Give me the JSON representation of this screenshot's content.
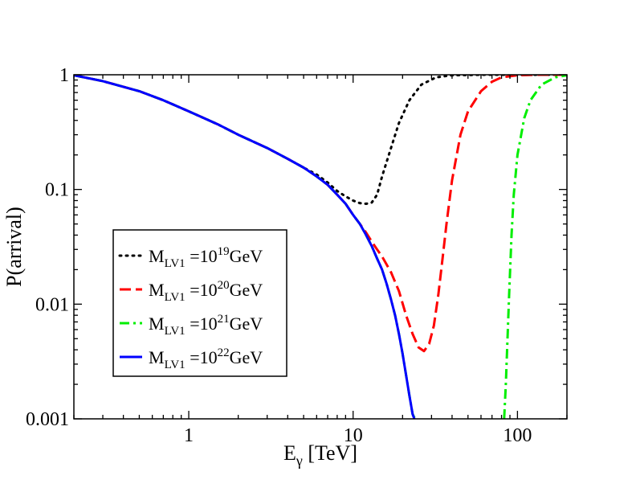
{
  "chart_data": {
    "type": "line",
    "title": "",
    "xlabel": "E",
    "xlabel_sub": "γ",
    "xlabel_unit": " [TeV]",
    "ylabel": "P(arrival)",
    "xscale": "log",
    "yscale": "log",
    "xlim": [
      0.2,
      200
    ],
    "ylim": [
      0.001,
      1
    ],
    "x_ticks": [
      {
        "value": 1,
        "label": "1"
      },
      {
        "value": 10,
        "label": "10"
      },
      {
        "value": 100,
        "label": "100"
      }
    ],
    "y_ticks": [
      {
        "value": 0.001,
        "label": "0.001"
      },
      {
        "value": 0.01,
        "label": "0.01"
      },
      {
        "value": 0.1,
        "label": "0.1"
      },
      {
        "value": 1,
        "label": "1"
      }
    ],
    "legend_position": "center-left",
    "series": [
      {
        "name": "M_LV1 =10^19 GeV",
        "label_main": "M",
        "label_sub": "LV1",
        "label_mid": " =10",
        "label_sup": "19",
        "label_unit": "GeV",
        "color": "#000000",
        "style": "dotted",
        "x": [
          0.2,
          0.3,
          0.5,
          0.7,
          1,
          1.5,
          2,
          3,
          4,
          5,
          6,
          7,
          8,
          9,
          10,
          11,
          12,
          13,
          14,
          15,
          17,
          19,
          22,
          26,
          32,
          40,
          60,
          100,
          200
        ],
        "y": [
          0.99,
          0.88,
          0.72,
          0.6,
          0.48,
          0.37,
          0.3,
          0.23,
          0.185,
          0.155,
          0.135,
          0.115,
          0.097,
          0.087,
          0.08,
          0.076,
          0.075,
          0.077,
          0.09,
          0.13,
          0.23,
          0.38,
          0.6,
          0.82,
          0.95,
          0.99,
          1.0,
          1.0,
          1.0
        ]
      },
      {
        "name": "M_LV1 =10^20 GeV",
        "label_main": "M",
        "label_sub": "LV1",
        "label_mid": " =10",
        "label_sup": "20",
        "label_unit": "GeV",
        "color": "#ff0000",
        "style": "dashed",
        "x": [
          0.2,
          0.3,
          0.5,
          0.7,
          1,
          1.5,
          2,
          3,
          4,
          5,
          6,
          7,
          8,
          9,
          10,
          11,
          12,
          13,
          14,
          15,
          17,
          19,
          21,
          23,
          25,
          27,
          29,
          31,
          33,
          35,
          37,
          40,
          45,
          50,
          60,
          70,
          80,
          100,
          130,
          200
        ],
        "y": [
          0.99,
          0.88,
          0.72,
          0.6,
          0.48,
          0.37,
          0.3,
          0.23,
          0.185,
          0.155,
          0.13,
          0.11,
          0.09,
          0.075,
          0.06,
          0.05,
          0.042,
          0.035,
          0.03,
          0.026,
          0.019,
          0.013,
          0.008,
          0.0055,
          0.0042,
          0.0039,
          0.0045,
          0.0065,
          0.012,
          0.025,
          0.05,
          0.12,
          0.3,
          0.48,
          0.72,
          0.87,
          0.95,
          0.99,
          1.0,
          1.0
        ]
      },
      {
        "name": "M_LV1 =10^21 GeV",
        "label_main": "M",
        "label_sub": "LV1",
        "label_mid": " =10",
        "label_sup": "21",
        "label_unit": "GeV",
        "color": "#00ee00",
        "style": "dashdot",
        "x": [
          0.2,
          0.3,
          0.5,
          0.7,
          1,
          1.5,
          2,
          3,
          4,
          5,
          6,
          7,
          8,
          9,
          10,
          11,
          12,
          13,
          14,
          15,
          16,
          17,
          18,
          19,
          20,
          21,
          22,
          23,
          23.8
        ],
        "x2": [
          83,
          85,
          87,
          89,
          92,
          95,
          100,
          110,
          120,
          140,
          170,
          200
        ],
        "y": [
          0.99,
          0.88,
          0.72,
          0.6,
          0.48,
          0.37,
          0.3,
          0.23,
          0.185,
          0.155,
          0.13,
          0.11,
          0.09,
          0.075,
          0.06,
          0.05,
          0.04,
          0.032,
          0.025,
          0.02,
          0.015,
          0.011,
          0.008,
          0.0055,
          0.0037,
          0.0024,
          0.0016,
          0.0011,
          0.001
        ],
        "y2": [
          0.001,
          0.002,
          0.005,
          0.012,
          0.04,
          0.09,
          0.2,
          0.42,
          0.6,
          0.82,
          0.95,
          0.99
        ]
      },
      {
        "name": "M_LV1 =10^22 GeV",
        "label_main": "M",
        "label_sub": "LV1",
        "label_mid": " =10",
        "label_sup": "22",
        "label_unit": "GeV",
        "color": "#0000ff",
        "style": "solid",
        "x": [
          0.2,
          0.3,
          0.5,
          0.7,
          1,
          1.5,
          2,
          3,
          4,
          5,
          6,
          7,
          8,
          9,
          10,
          11,
          12,
          13,
          14,
          15,
          16,
          17,
          18,
          19,
          20,
          21,
          22,
          23,
          23.6
        ],
        "y": [
          0.99,
          0.88,
          0.72,
          0.6,
          0.48,
          0.37,
          0.3,
          0.23,
          0.185,
          0.155,
          0.13,
          0.11,
          0.09,
          0.075,
          0.06,
          0.05,
          0.04,
          0.032,
          0.025,
          0.02,
          0.015,
          0.011,
          0.008,
          0.0055,
          0.0037,
          0.0024,
          0.0016,
          0.0011,
          0.001
        ]
      }
    ]
  }
}
